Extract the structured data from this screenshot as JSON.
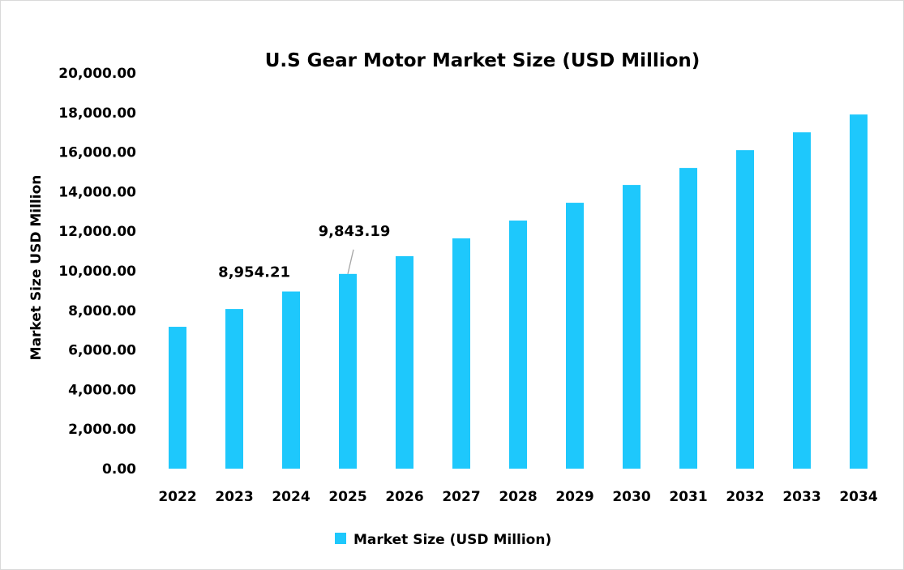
{
  "chart_data": {
    "type": "bar",
    "title": "U.S Gear Motor Market Size (USD Million)",
    "xlabel": "",
    "ylabel": "Market Size USD Million",
    "categories": [
      "2022",
      "2023",
      "2024",
      "2025",
      "2026",
      "2027",
      "2028",
      "2029",
      "2030",
      "2031",
      "2032",
      "2033",
      "2034"
    ],
    "series": [
      {
        "name": "Market Size (USD Million)",
        "color": "#1ec8fc",
        "values": [
          7170,
          8070,
          8954.21,
          9843.19,
          10740,
          11640,
          12540,
          13440,
          14340,
          15200,
          16100,
          17000,
          17900
        ]
      }
    ],
    "data_labels": [
      {
        "category": "2024",
        "text": "8,954.21"
      },
      {
        "category": "2025",
        "text": "9,843.19"
      }
    ],
    "ylim": [
      0,
      20000
    ],
    "yticks": [
      "0.00",
      "2,000.00",
      "4,000.00",
      "6,000.00",
      "8,000.00",
      "10,000.00",
      "12,000.00",
      "14,000.00",
      "16,000.00",
      "18,000.00",
      "20,000.00"
    ],
    "grid": false,
    "legend": "bottom"
  }
}
